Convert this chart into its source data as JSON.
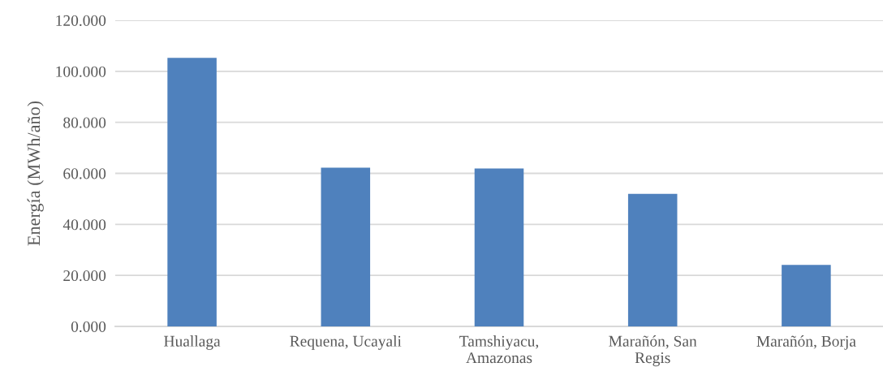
{
  "chart_data": {
    "type": "bar",
    "ylabel": "Energía (MWh/año)",
    "categories": [
      "Huallaga",
      "Requena, Ucayali",
      "Tamshiyacu,\nAmazonas",
      "Marañón, San\nRegis",
      "Marañón, Borja"
    ],
    "values": [
      105.3,
      62.2,
      61.9,
      52.0,
      24.1
    ],
    "color": "#4f81bd",
    "ylim": [
      0,
      120
    ],
    "yticks": [
      {
        "value": 0,
        "label": "0.000"
      },
      {
        "value": 20,
        "label": "20.000"
      },
      {
        "value": 40,
        "label": "40.000"
      },
      {
        "value": 60,
        "label": "60.000"
      },
      {
        "value": 80,
        "label": "80.000"
      },
      {
        "value": 100,
        "label": "100.000"
      },
      {
        "value": 120,
        "label": "120.000"
      }
    ],
    "grid": "y",
    "legend": false
  }
}
